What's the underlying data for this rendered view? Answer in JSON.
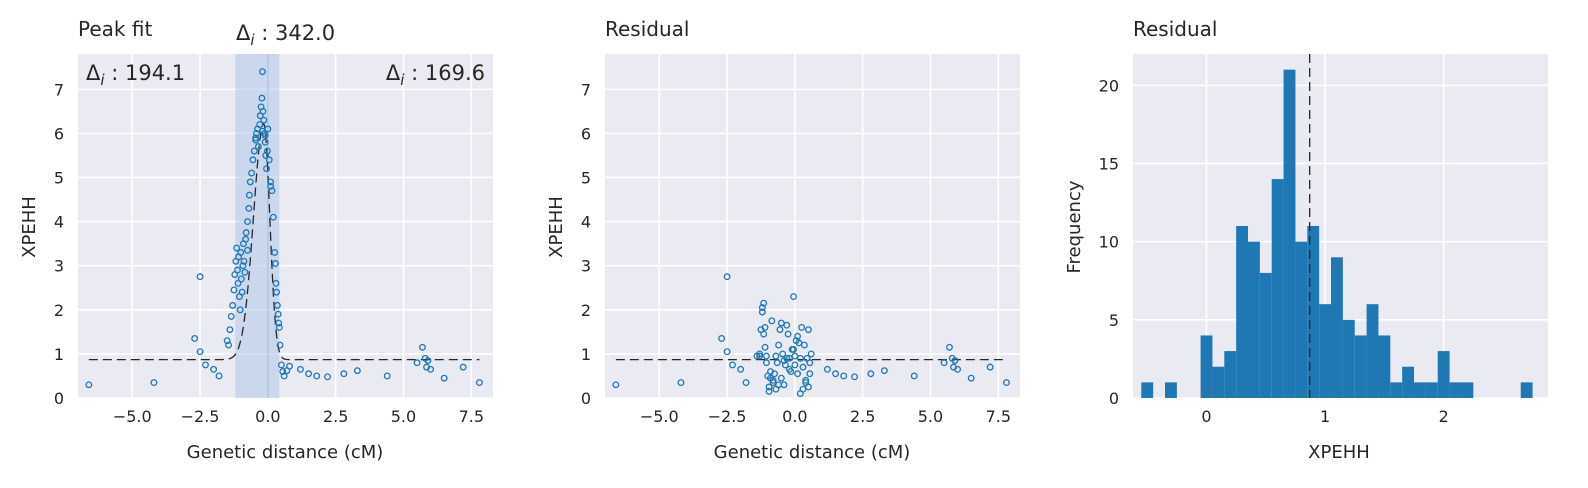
{
  "chart_data": [
    {
      "type": "scatter",
      "title": "Peak fit",
      "xlabel": "Genetic distance (cM)",
      "ylabel": "XPEHH",
      "xlim": [
        -7.0,
        8.3
      ],
      "ylim": [
        0,
        7.8
      ],
      "xticks": [
        "−5.0",
        "−2.5",
        "0.0",
        "2.5",
        "5.0",
        "7.5"
      ],
      "yticks": [
        "0",
        "1",
        "2",
        "3",
        "4",
        "5",
        "6",
        "7"
      ],
      "grid": true,
      "annotations": {
        "left": {
          "symbol": "Δ",
          "sub": "i",
          "text": " : 194.1"
        },
        "center": {
          "symbol": "Δ",
          "sub": "i",
          "text": " : 342.0"
        },
        "right": {
          "symbol": "Δ",
          "sub": "i",
          "text": " : 169.6"
        }
      },
      "shaded_region": [
        -1.2,
        0.42
      ],
      "vline": 0.0,
      "baseline": 0.87,
      "x": [
        -6.6,
        -4.2,
        -2.5,
        -2.7,
        -2.5,
        -2.3,
        -2.0,
        -1.8,
        -1.5,
        -1.45,
        -1.4,
        -1.35,
        -1.3,
        -1.25,
        -1.22,
        -1.18,
        -1.15,
        -1.12,
        -1.1,
        -1.08,
        -1.05,
        -1.02,
        -1.0,
        -0.98,
        -0.95,
        -0.92,
        -0.9,
        -0.88,
        -0.85,
        -0.82,
        -0.8,
        -0.75,
        -0.7,
        -0.68,
        -0.65,
        -0.6,
        -0.55,
        -0.5,
        -0.45,
        -0.42,
        -0.38,
        -0.35,
        -0.3,
        -0.28,
        -0.25,
        -0.22,
        -0.2,
        -0.18,
        -0.15,
        -0.12,
        -0.1,
        -0.08,
        -0.05,
        -0.02,
        0.0,
        0.05,
        0.1,
        0.15,
        0.2,
        0.25,
        0.3,
        0.32,
        0.35,
        0.38,
        0.4,
        0.42,
        0.45,
        0.5,
        0.55,
        0.6,
        0.7,
        0.8,
        1.2,
        1.5,
        1.8,
        2.2,
        2.8,
        3.3,
        4.4,
        5.5,
        5.7,
        5.8,
        5.85,
        5.9,
        6.0,
        6.5,
        7.2,
        7.8,
        -0.1,
        -0.45,
        -0.2,
        -0.75,
        0.1,
        0.28
      ],
      "y": [
        0.3,
        0.35,
        2.75,
        1.35,
        1.05,
        0.75,
        0.65,
        0.5,
        1.3,
        1.2,
        1.55,
        1.85,
        2.1,
        2.45,
        2.8,
        3.1,
        3.4,
        2.9,
        2.6,
        3.2,
        2.3,
        2.0,
        3.3,
        2.7,
        2.4,
        3.0,
        3.5,
        3.1,
        2.85,
        3.6,
        3.75,
        4.0,
        4.3,
        4.6,
        4.9,
        5.1,
        5.4,
        5.6,
        5.9,
        6.0,
        6.1,
        5.7,
        6.2,
        6.4,
        6.6,
        6.8,
        7.4,
        6.5,
        6.3,
        6.0,
        5.8,
        5.5,
        5.2,
        5.6,
        6.1,
        5.4,
        4.9,
        4.7,
        4.1,
        3.3,
        2.6,
        2.4,
        2.1,
        1.9,
        1.7,
        1.6,
        1.2,
        0.75,
        0.6,
        0.5,
        0.62,
        0.72,
        0.65,
        0.55,
        0.5,
        0.48,
        0.55,
        0.62,
        0.5,
        0.8,
        1.15,
        0.9,
        0.7,
        0.85,
        0.65,
        0.45,
        0.7,
        0.35,
        5.95,
        5.85,
        6.05,
        3.35,
        4.8,
        3.05
      ]
    },
    {
      "type": "scatter",
      "title": "Residual",
      "xlabel": "Genetic distance (cM)",
      "ylabel": "XPEHH",
      "xlim": [
        -7.0,
        8.3
      ],
      "ylim": [
        0,
        7.8
      ],
      "xticks": [
        "−5.0",
        "−2.5",
        "0.0",
        "2.5",
        "5.0",
        "7.5"
      ],
      "yticks": [
        "0",
        "1",
        "2",
        "3",
        "4",
        "5",
        "6",
        "7"
      ],
      "grid": true,
      "baseline": 0.87,
      "x": [
        -6.6,
        -4.2,
        -2.5,
        -2.7,
        -2.5,
        -2.3,
        -2.0,
        -1.8,
        -1.4,
        -1.3,
        -1.25,
        -1.2,
        -1.15,
        -1.1,
        -1.1,
        -1.05,
        -1.0,
        -0.95,
        -0.9,
        -0.85,
        -0.8,
        -0.75,
        -0.7,
        -0.65,
        -0.6,
        -0.55,
        -0.5,
        -0.45,
        -0.4,
        -0.35,
        -0.3,
        -0.25,
        -0.2,
        -0.15,
        -0.1,
        -0.05,
        0.0,
        0.05,
        0.1,
        0.15,
        0.2,
        0.25,
        0.3,
        0.35,
        0.4,
        0.45,
        0.5,
        0.55,
        0.6,
        1.2,
        1.5,
        1.8,
        2.2,
        2.8,
        3.3,
        4.4,
        5.5,
        5.7,
        5.8,
        5.85,
        5.9,
        6.0,
        6.5,
        7.2,
        7.8,
        -1.2,
        -1.15,
        -1.05,
        -0.95,
        -0.8,
        -0.6,
        -0.4,
        -0.2,
        0.0,
        0.2,
        0.4,
        0.55,
        -0.05,
        0.1,
        0.3,
        -0.5,
        -0.9,
        -1.3,
        0.5,
        -0.3,
        -0.7
      ],
      "y": [
        0.3,
        0.35,
        2.75,
        1.35,
        1.05,
        0.75,
        0.65,
        0.35,
        0.95,
        1.0,
        1.55,
        2.05,
        2.15,
        1.6,
        1.15,
        0.8,
        0.5,
        0.25,
        0.6,
        1.75,
        0.35,
        0.55,
        0.95,
        0.8,
        1.2,
        1.55,
        0.45,
        1.0,
        0.3,
        0.75,
        1.65,
        1.45,
        0.9,
        0.6,
        1.1,
        2.3,
        0.75,
        1.3,
        0.55,
        1.25,
        0.9,
        1.6,
        0.7,
        1.2,
        0.4,
        0.9,
        1.55,
        0.55,
        1.0,
        0.65,
        0.55,
        0.5,
        0.48,
        0.55,
        0.62,
        0.5,
        0.8,
        1.15,
        0.9,
        0.7,
        0.85,
        0.65,
        0.45,
        0.7,
        0.35,
        1.95,
        1.45,
        0.95,
        0.15,
        0.4,
        0.3,
        0.85,
        0.65,
        0.95,
        0.1,
        0.35,
        0.8,
        1.1,
        1.4,
        0.2,
        1.7,
        0.45,
        0.95,
        0.25,
        0.9,
        0.2
      ],
      "points_per_series": null
    },
    {
      "type": "bar",
      "title": "Residual",
      "xlabel": "XPEHH",
      "ylabel": "Frequency",
      "xlim": [
        -0.62,
        2.88
      ],
      "ylim": [
        0,
        22
      ],
      "xticks": [
        "0",
        "1",
        "2"
      ],
      "yticks": [
        "0",
        "5",
        "10",
        "15",
        "20"
      ],
      "grid": true,
      "vline": 0.87,
      "bin_width": 0.1,
      "bin_starts": [
        -0.55,
        -0.45,
        -0.35,
        -0.25,
        -0.15,
        -0.05,
        0.05,
        0.15,
        0.25,
        0.35,
        0.45,
        0.55,
        0.65,
        0.75,
        0.85,
        0.95,
        1.05,
        1.15,
        1.25,
        1.35,
        1.45,
        1.55,
        1.65,
        1.75,
        1.85,
        1.95,
        2.05,
        2.15,
        2.25,
        2.35,
        2.45,
        2.55,
        2.65
      ],
      "values": [
        1,
        0,
        1,
        0,
        0,
        4,
        2,
        3,
        11,
        10,
        8,
        14,
        21,
        10,
        11,
        6,
        9,
        5,
        4,
        6,
        4,
        1,
        2,
        1,
        1,
        3,
        1,
        1,
        0,
        0,
        0,
        0,
        1
      ]
    }
  ],
  "colors": {
    "axes_bg": "#eaeaf2",
    "grid": "#ffffff",
    "marker": "#1f77b4",
    "bar": "#1f77b4",
    "shade": "#aec7e8",
    "line": "#262626"
  }
}
